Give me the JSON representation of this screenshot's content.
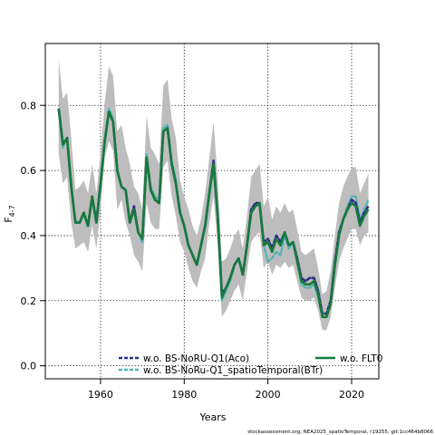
{
  "chart_data": {
    "type": "line",
    "xlabel": "Years",
    "ylabel": "F",
    "ylabel_sub": "4-7",
    "xlim": [
      1946.8,
      2026.5
    ],
    "ylim": [
      -0.04,
      0.99
    ],
    "x_ticks": [
      1960,
      1980,
      2000,
      2020
    ],
    "y_ticks": [
      0.0,
      0.2,
      0.4,
      0.6,
      0.8
    ],
    "y_tick_labels": [
      "0.0",
      "0.2",
      "0.4",
      "0.6",
      "0.8"
    ],
    "grid": true,
    "legend_position": "bottom",
    "footer": "stockassessment.org, NEA2025_spatioTemporal, r19255, git:1cc464b8066",
    "band": {
      "color": "#bdbdbd",
      "x": [
        1950,
        1951,
        1952,
        1953,
        1954,
        1955,
        1956,
        1957,
        1958,
        1959,
        1960,
        1961,
        1962,
        1963,
        1964,
        1965,
        1966,
        1967,
        1968,
        1969,
        1970,
        1971,
        1972,
        1973,
        1974,
        1975,
        1976,
        1977,
        1978,
        1979,
        1980,
        1981,
        1982,
        1983,
        1984,
        1985,
        1986,
        1987,
        1988,
        1989,
        1990,
        1991,
        1992,
        1993,
        1994,
        1995,
        1996,
        1997,
        1998,
        1999,
        2000,
        2001,
        2002,
        2003,
        2004,
        2005,
        2006,
        2007,
        2008,
        2009,
        2010,
        2011,
        2012,
        2013,
        2014,
        2015,
        2016,
        2017,
        2018,
        2019,
        2020,
        2021,
        2022,
        2023,
        2024
      ],
      "upper": [
        0.94,
        0.82,
        0.84,
        0.7,
        0.54,
        0.55,
        0.57,
        0.53,
        0.62,
        0.53,
        0.65,
        0.81,
        0.92,
        0.89,
        0.72,
        0.74,
        0.67,
        0.62,
        0.55,
        0.53,
        0.48,
        0.77,
        0.67,
        0.65,
        0.62,
        0.86,
        0.88,
        0.76,
        0.7,
        0.57,
        0.52,
        0.48,
        0.43,
        0.4,
        0.45,
        0.53,
        0.64,
        0.75,
        0.57,
        0.32,
        0.33,
        0.36,
        0.4,
        0.42,
        0.36,
        0.46,
        0.58,
        0.6,
        0.62,
        0.49,
        0.52,
        0.45,
        0.49,
        0.47,
        0.5,
        0.47,
        0.48,
        0.42,
        0.35,
        0.34,
        0.35,
        0.36,
        0.3,
        0.22,
        0.23,
        0.29,
        0.4,
        0.5,
        0.55,
        0.58,
        0.61,
        0.61,
        0.53,
        0.56,
        0.59
      ],
      "lower": [
        0.65,
        0.56,
        0.58,
        0.44,
        0.36,
        0.37,
        0.38,
        0.35,
        0.43,
        0.36,
        0.48,
        0.64,
        0.69,
        0.66,
        0.48,
        0.51,
        0.44,
        0.4,
        0.34,
        0.32,
        0.29,
        0.5,
        0.44,
        0.42,
        0.42,
        0.61,
        0.63,
        0.52,
        0.46,
        0.38,
        0.35,
        0.3,
        0.26,
        0.24,
        0.29,
        0.33,
        0.44,
        0.52,
        0.37,
        0.15,
        0.17,
        0.2,
        0.23,
        0.25,
        0.2,
        0.29,
        0.38,
        0.4,
        0.41,
        0.3,
        0.32,
        0.28,
        0.31,
        0.3,
        0.32,
        0.3,
        0.31,
        0.26,
        0.21,
        0.2,
        0.2,
        0.21,
        0.17,
        0.11,
        0.11,
        0.15,
        0.24,
        0.32,
        0.36,
        0.39,
        0.42,
        0.42,
        0.37,
        0.4,
        0.41
      ]
    },
    "x": [
      1950,
      1951,
      1952,
      1953,
      1954,
      1955,
      1956,
      1957,
      1958,
      1959,
      1960,
      1961,
      1962,
      1963,
      1964,
      1965,
      1966,
      1967,
      1968,
      1969,
      1970,
      1971,
      1972,
      1973,
      1974,
      1975,
      1976,
      1977,
      1978,
      1979,
      1980,
      1981,
      1982,
      1983,
      1984,
      1985,
      1986,
      1987,
      1988,
      1989,
      1990,
      1991,
      1992,
      1993,
      1994,
      1995,
      1996,
      1997,
      1998,
      1999,
      2000,
      2001,
      2002,
      2003,
      2004,
      2005,
      2006,
      2007,
      2008,
      2009,
      2010,
      2011,
      2012,
      2013,
      2014,
      2015,
      2016,
      2017,
      2018,
      2019,
      2020,
      2021,
      2022,
      2023,
      2024
    ],
    "series": [
      {
        "name": "w.o. BS-NoRU-Q1(Aco)",
        "color": "#2b2f86",
        "dash": "dash",
        "values": [
          0.79,
          0.68,
          0.7,
          0.55,
          0.44,
          0.44,
          0.47,
          0.43,
          0.52,
          0.44,
          0.56,
          0.69,
          0.78,
          0.75,
          0.6,
          0.55,
          0.54,
          0.44,
          0.49,
          0.41,
          0.39,
          0.64,
          0.54,
          0.51,
          0.5,
          0.72,
          0.73,
          0.62,
          0.56,
          0.47,
          0.43,
          0.37,
          0.34,
          0.31,
          0.37,
          0.43,
          0.53,
          0.63,
          0.46,
          0.22,
          0.24,
          0.27,
          0.31,
          0.33,
          0.28,
          0.37,
          0.48,
          0.5,
          0.5,
          0.38,
          0.39,
          0.36,
          0.4,
          0.38,
          0.41,
          0.37,
          0.38,
          0.33,
          0.27,
          0.26,
          0.27,
          0.27,
          0.23,
          0.16,
          0.16,
          0.2,
          0.32,
          0.41,
          0.45,
          0.48,
          0.51,
          0.5,
          0.44,
          0.47,
          0.49
        ]
      },
      {
        "name": "w.o. BS-NoRu-Q1_spatioTemporal(BTr)",
        "color": "#4fb3b3",
        "dash": "dash",
        "values": [
          0.79,
          0.67,
          0.7,
          0.55,
          0.44,
          0.44,
          0.47,
          0.43,
          0.52,
          0.44,
          0.56,
          0.69,
          0.79,
          0.76,
          0.6,
          0.55,
          0.54,
          0.44,
          0.48,
          0.41,
          0.38,
          0.65,
          0.55,
          0.52,
          0.51,
          0.73,
          0.74,
          0.63,
          0.57,
          0.47,
          0.43,
          0.37,
          0.34,
          0.31,
          0.37,
          0.43,
          0.54,
          0.6,
          0.46,
          0.2,
          0.23,
          0.26,
          0.31,
          0.33,
          0.28,
          0.37,
          0.48,
          0.5,
          0.49,
          0.37,
          0.32,
          0.33,
          0.35,
          0.34,
          0.4,
          0.36,
          0.38,
          0.32,
          0.25,
          0.24,
          0.24,
          0.25,
          0.21,
          0.15,
          0.15,
          0.19,
          0.3,
          0.4,
          0.45,
          0.49,
          0.52,
          0.52,
          0.45,
          0.48,
          0.51
        ]
      },
      {
        "name": "w.o. FLT0",
        "color": "#167a3b",
        "dash": "solid",
        "values": [
          0.79,
          0.68,
          0.7,
          0.55,
          0.44,
          0.44,
          0.47,
          0.43,
          0.52,
          0.44,
          0.56,
          0.69,
          0.78,
          0.75,
          0.6,
          0.55,
          0.54,
          0.44,
          0.48,
          0.41,
          0.39,
          0.64,
          0.54,
          0.51,
          0.5,
          0.72,
          0.73,
          0.62,
          0.56,
          0.47,
          0.43,
          0.37,
          0.34,
          0.31,
          0.37,
          0.43,
          0.53,
          0.62,
          0.46,
          0.21,
          0.24,
          0.27,
          0.31,
          0.33,
          0.28,
          0.37,
          0.47,
          0.49,
          0.5,
          0.37,
          0.38,
          0.35,
          0.39,
          0.37,
          0.41,
          0.37,
          0.38,
          0.32,
          0.26,
          0.25,
          0.25,
          0.26,
          0.22,
          0.15,
          0.15,
          0.19,
          0.31,
          0.4,
          0.45,
          0.48,
          0.5,
          0.49,
          0.43,
          0.46,
          0.48
        ]
      }
    ]
  }
}
